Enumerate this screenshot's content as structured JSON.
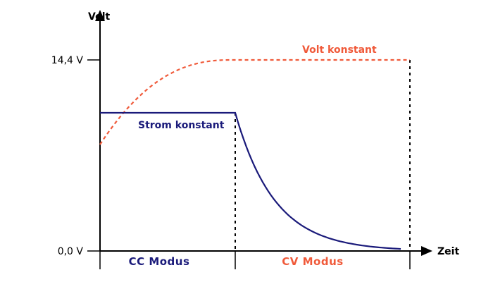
{
  "chart_data": {
    "type": "line",
    "xlabel": "Zeit",
    "ylabel": "Volt",
    "y_ticks": [
      "14,4 V",
      "0,0 V"
    ],
    "colors": {
      "axis": "#000000",
      "current": "#1a1a7a",
      "voltage": "#f05a3a",
      "cc_label": "#1a1a7a",
      "cv_label": "#f05a3a"
    },
    "series": [
      {
        "name": "Strom konstant",
        "line_style": "solid",
        "shape": "flat level during CC Modus, then exponential decay to 0 during CV Modus"
      },
      {
        "name": "Volt konstant",
        "line_style": "dashed",
        "shape": "rises during CC Modus, reaches 14,4 V and stays flat during CV Modus"
      }
    ],
    "regions": [
      {
        "label": "CC Modus"
      },
      {
        "label": "CV Modus"
      }
    ],
    "grid": false,
    "legend": "none"
  }
}
